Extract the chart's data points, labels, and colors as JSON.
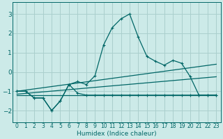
{
  "xlabel": "Humidex (Indice chaleur)",
  "background_color": "#cceae8",
  "grid_color": "#aacfcd",
  "line_color": "#006666",
  "xlim": [
    -0.5,
    23.5
  ],
  "ylim": [
    -2.6,
    3.6
  ],
  "xticks": [
    0,
    1,
    2,
    3,
    4,
    5,
    6,
    7,
    8,
    9,
    10,
    11,
    12,
    13,
    14,
    15,
    16,
    17,
    18,
    19,
    20,
    21,
    22,
    23
  ],
  "yticks": [
    -2,
    -1,
    0,
    1,
    2,
    3
  ],
  "series": [
    {
      "x": [
        0,
        1,
        2,
        3,
        4,
        5,
        6,
        7,
        8,
        9,
        10,
        11,
        12,
        13,
        14,
        15,
        16,
        17,
        18,
        19,
        20,
        21,
        22,
        23
      ],
      "y": [
        -1.0,
        -1.0,
        -1.35,
        -1.35,
        -2.0,
        -1.5,
        -0.65,
        -0.5,
        -0.65,
        -0.2,
        1.4,
        2.3,
        2.75,
        3.0,
        1.8,
        0.8,
        0.55,
        0.35,
        0.6,
        0.45,
        -0.25,
        -1.2,
        -1.2,
        -1.2
      ],
      "marker": true
    },
    {
      "x": [
        0,
        1,
        2,
        3,
        4,
        5,
        6,
        7,
        8,
        9,
        10,
        11,
        12,
        13,
        14,
        15,
        16,
        17,
        18,
        19,
        20,
        21,
        22,
        23
      ],
      "y": [
        -1.0,
        -1.0,
        -1.35,
        -1.35,
        -2.0,
        -1.5,
        -0.65,
        -1.1,
        -1.2,
        -1.2,
        -1.2,
        -1.2,
        -1.2,
        -1.2,
        -1.2,
        -1.2,
        -1.2,
        -1.2,
        -1.2,
        -1.2,
        -1.2,
        -1.2,
        -1.2,
        -1.2
      ],
      "marker": true
    },
    {
      "x": [
        0,
        23
      ],
      "y": [
        -1.0,
        0.4
      ],
      "marker": false
    },
    {
      "x": [
        0,
        23
      ],
      "y": [
        -1.15,
        -0.25
      ],
      "marker": false
    },
    {
      "x": [
        0,
        23
      ],
      "y": [
        -1.2,
        -1.2
      ],
      "marker": false
    }
  ]
}
